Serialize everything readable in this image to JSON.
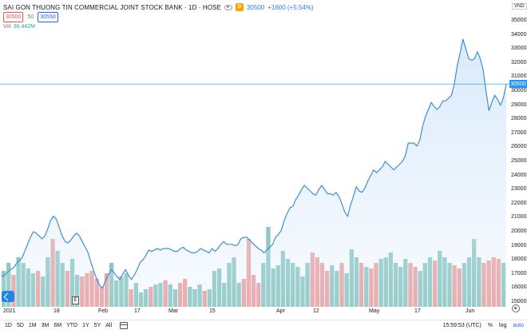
{
  "header": {
    "title": "SAI GON THUONG TIN COMMERCIAL JOINT STOCK BANK · 1D · HOSE",
    "last_price": "30500",
    "change": "+1600 (+5.54%)",
    "sell_price": "30500",
    "spread": "50",
    "buy_price": "30550",
    "volume_label": "Vol",
    "volume_value": "36.442M",
    "currency": "VND",
    "marker_e": "E"
  },
  "price_axis": {
    "ticks": [
      "35000",
      "34000",
      "33000",
      "32000",
      "31000",
      "30000",
      "29000",
      "28000",
      "27000",
      "26000",
      "25000",
      "24000",
      "23000",
      "22000",
      "21000",
      "20000",
      "19000",
      "18000",
      "17000",
      "16000",
      "15000"
    ],
    "last_tag": "30500"
  },
  "time_axis": {
    "ticks": [
      {
        "label": "2021"
      },
      {
        "label": "18"
      },
      {
        "label": "Feb"
      },
      {
        "label": "17"
      },
      {
        "label": "Mar"
      },
      {
        "label": "15"
      },
      {
        "label": "Apr"
      },
      {
        "label": "12"
      },
      {
        "label": "May"
      },
      {
        "label": "17"
      },
      {
        "label": "Jun"
      }
    ]
  },
  "bottom_bar": {
    "ranges": [
      "1D",
      "5D",
      "1M",
      "3M",
      "6M",
      "YTD",
      "1Y",
      "5Y",
      "All"
    ],
    "time": "15:59:53 (UTC)",
    "percent": "%",
    "log": "log",
    "auto": "auto"
  },
  "colors": {
    "line": "#3e8fd9",
    "area": "#d6e8fa",
    "vol_up": "#8ec8c2",
    "vol_down": "#eca3a3",
    "tag": "#2196f3"
  },
  "chart_data": {
    "type": "line",
    "title": "SAI GON THUONG TIN COMMERCIAL JOINT STOCK BANK",
    "ylim": [
      15000,
      35000
    ],
    "price": [
      16800,
      16900,
      17100,
      17300,
      17400,
      17700,
      17900,
      18100,
      18600,
      19100,
      19600,
      20000,
      19900,
      19700,
      19500,
      19700,
      20200,
      20800,
      21100,
      20900,
      20300,
      19700,
      19300,
      19200,
      19400,
      19700,
      19900,
      19700,
      19300,
      18900,
      18500,
      17800,
      17200,
      16600,
      16200,
      16000,
      16500,
      16900,
      17300,
      17100,
      16800,
      16600,
      17000,
      17300,
      16900,
      16600,
      16900,
      17300,
      17800,
      18000,
      18300,
      18700,
      18600,
      18700,
      18800,
      18700,
      18800,
      18800,
      18800,
      18700,
      18600,
      18600,
      18800,
      18900,
      18700,
      18600,
      18500,
      18500,
      18600,
      18800,
      18700,
      18600,
      18500,
      18800,
      18600,
      18800,
      19100,
      19300,
      19100,
      19100,
      19100,
      19000,
      19100,
      19500,
      19600,
      19600,
      19400,
      19200,
      19000,
      18800,
      18700,
      18500,
      18700,
      18900,
      19100,
      19600,
      19800,
      20100,
      20800,
      21300,
      21700,
      21800,
      22300,
      22600,
      23000,
      23300,
      23100,
      22900,
      22700,
      22600,
      23000,
      23300,
      23000,
      22700,
      22700,
      22600,
      22800,
      22500,
      22000,
      21400,
      21100,
      21900,
      22500,
      23200,
      22900,
      22800,
      23100,
      23600,
      24000,
      24400,
      24200,
      24400,
      24600,
      25000,
      24800,
      24600,
      24400,
      24600,
      24800,
      25000,
      25400,
      26300,
      26300,
      26300,
      26100,
      26500,
      27500,
      28200,
      28700,
      29200,
      28900,
      28700,
      28900,
      29300,
      29300,
      29500,
      29700,
      30500,
      31800,
      32700,
      33700,
      33000,
      32300,
      32200,
      32300,
      32800,
      32300,
      31500,
      30000,
      28600,
      29200,
      29700,
      29400,
      29000,
      29500,
      30500
    ],
    "volume": [
      {
        "v": 0.45,
        "up": true
      },
      {
        "v": 0.55,
        "up": true
      },
      {
        "v": 0.4,
        "up": false
      },
      {
        "v": 0.62,
        "up": true
      },
      {
        "v": 0.55,
        "up": true
      },
      {
        "v": 0.48,
        "up": true
      },
      {
        "v": 0.42,
        "up": true
      },
      {
        "v": 0.45,
        "up": false
      },
      {
        "v": 0.38,
        "up": true
      },
      {
        "v": 0.62,
        "up": true
      },
      {
        "v": 0.85,
        "up": false
      },
      {
        "v": 0.7,
        "up": true
      },
      {
        "v": 0.55,
        "up": true
      },
      {
        "v": 0.45,
        "up": false
      },
      {
        "v": 0.6,
        "up": true
      },
      {
        "v": 0.4,
        "up": true
      },
      {
        "v": 0.38,
        "up": false
      },
      {
        "v": 0.42,
        "up": false
      },
      {
        "v": 0.45,
        "up": false
      },
      {
        "v": 0.35,
        "up": false
      },
      {
        "v": 0.25,
        "up": false
      },
      {
        "v": 0.42,
        "up": false
      },
      {
        "v": 0.55,
        "up": true
      },
      {
        "v": 0.33,
        "up": true
      },
      {
        "v": 0.38,
        "up": true
      },
      {
        "v": 0.42,
        "up": true
      },
      {
        "v": 0.22,
        "up": false
      },
      {
        "v": 0.3,
        "up": true
      },
      {
        "v": 0.18,
        "up": true
      },
      {
        "v": 0.22,
        "up": true
      },
      {
        "v": 0.25,
        "up": false
      },
      {
        "v": 0.28,
        "up": true
      },
      {
        "v": 0.3,
        "up": true
      },
      {
        "v": 0.33,
        "up": false
      },
      {
        "v": 0.28,
        "up": true
      },
      {
        "v": 0.22,
        "up": true
      },
      {
        "v": 0.3,
        "up": false
      },
      {
        "v": 0.35,
        "up": false
      },
      {
        "v": 0.25,
        "up": true
      },
      {
        "v": 0.22,
        "up": true
      },
      {
        "v": 0.28,
        "up": true
      },
      {
        "v": 0.2,
        "up": false
      },
      {
        "v": 0.22,
        "up": true
      },
      {
        "v": 0.45,
        "up": true
      },
      {
        "v": 0.48,
        "up": true
      },
      {
        "v": 0.3,
        "up": true
      },
      {
        "v": 0.55,
        "up": true
      },
      {
        "v": 0.62,
        "up": true
      },
      {
        "v": 0.3,
        "up": true
      },
      {
        "v": 0.35,
        "up": false
      },
      {
        "v": 0.85,
        "up": false
      },
      {
        "v": 0.4,
        "up": false
      },
      {
        "v": 0.3,
        "up": false
      },
      {
        "v": 0.55,
        "up": true
      },
      {
        "v": 1.0,
        "up": true
      },
      {
        "v": 0.48,
        "up": true
      },
      {
        "v": 0.52,
        "up": true
      },
      {
        "v": 0.7,
        "up": true
      },
      {
        "v": 0.6,
        "up": true
      },
      {
        "v": 0.55,
        "up": true
      },
      {
        "v": 0.5,
        "up": true
      },
      {
        "v": 0.38,
        "up": true
      },
      {
        "v": 0.55,
        "up": true
      },
      {
        "v": 0.68,
        "up": false
      },
      {
        "v": 0.62,
        "up": false
      },
      {
        "v": 0.55,
        "up": false
      },
      {
        "v": 0.45,
        "up": false
      },
      {
        "v": 0.52,
        "up": true
      },
      {
        "v": 0.45,
        "up": true
      },
      {
        "v": 0.55,
        "up": false
      },
      {
        "v": 0.42,
        "up": true
      },
      {
        "v": 0.72,
        "up": true
      },
      {
        "v": 0.62,
        "up": true
      },
      {
        "v": 0.55,
        "up": false
      },
      {
        "v": 0.5,
        "up": true
      },
      {
        "v": 0.48,
        "up": false
      },
      {
        "v": 0.55,
        "up": false
      },
      {
        "v": 0.6,
        "up": true
      },
      {
        "v": 0.62,
        "up": true
      },
      {
        "v": 0.68,
        "up": true
      },
      {
        "v": 0.55,
        "up": true
      },
      {
        "v": 0.5,
        "up": true
      },
      {
        "v": 0.6,
        "up": true
      },
      {
        "v": 0.55,
        "up": false
      },
      {
        "v": 0.5,
        "up": false
      },
      {
        "v": 0.45,
        "up": true
      },
      {
        "v": 0.55,
        "up": true
      },
      {
        "v": 0.62,
        "up": true
      },
      {
        "v": 0.58,
        "up": false
      },
      {
        "v": 0.7,
        "up": true
      },
      {
        "v": 0.62,
        "up": true
      },
      {
        "v": 0.55,
        "up": true
      },
      {
        "v": 0.52,
        "up": false
      },
      {
        "v": 0.48,
        "up": false
      },
      {
        "v": 0.55,
        "up": true
      },
      {
        "v": 0.62,
        "up": true
      },
      {
        "v": 0.85,
        "up": true
      },
      {
        "v": 0.62,
        "up": true
      },
      {
        "v": 0.55,
        "up": false
      },
      {
        "v": 0.58,
        "up": false
      },
      {
        "v": 0.62,
        "up": false
      },
      {
        "v": 0.6,
        "up": false
      },
      {
        "v": 0.55,
        "up": true
      }
    ]
  }
}
